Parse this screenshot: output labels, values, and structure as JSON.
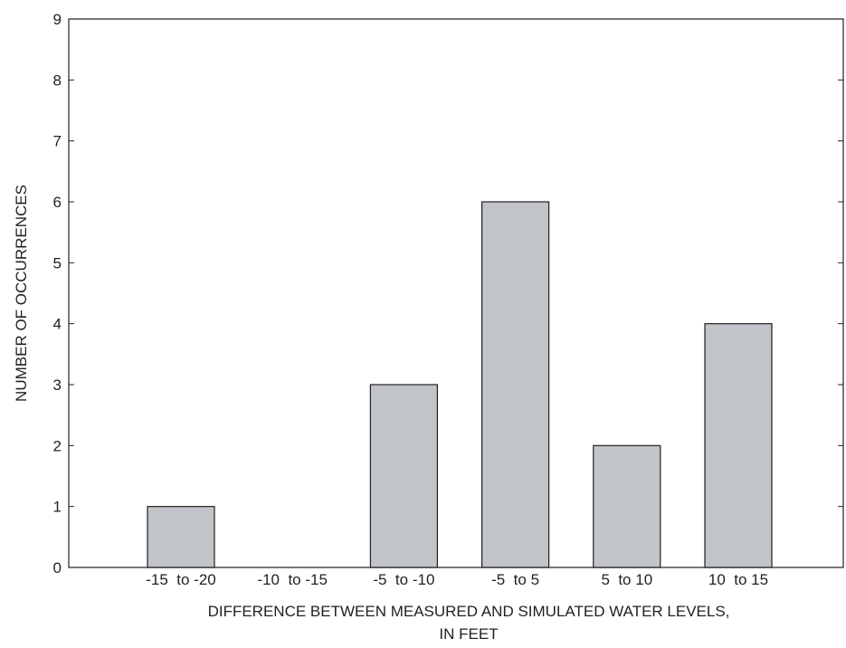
{
  "chart_data": {
    "type": "bar",
    "categories": [
      "-15  to -20",
      "-10  to -15",
      "-5  to -10",
      "-5  to 5",
      "5  to 10",
      "10  to 15"
    ],
    "values": [
      1,
      0,
      3,
      6,
      2,
      4
    ],
    "title": "",
    "xlabel": "DIFFERENCE BETWEEN MEASURED AND SIMULATED WATER LEVELS,",
    "xlabel_line2": "IN FEET",
    "ylabel": "NUMBER OF OCCURRENCES",
    "ylim": [
      0,
      9
    ],
    "yticks": [
      "0",
      "1",
      "2",
      "3",
      "4",
      "5",
      "6",
      "7",
      "8",
      "9"
    ],
    "grid": false,
    "bar_color": "#c1c4c9",
    "edge_color": "#231f20"
  }
}
